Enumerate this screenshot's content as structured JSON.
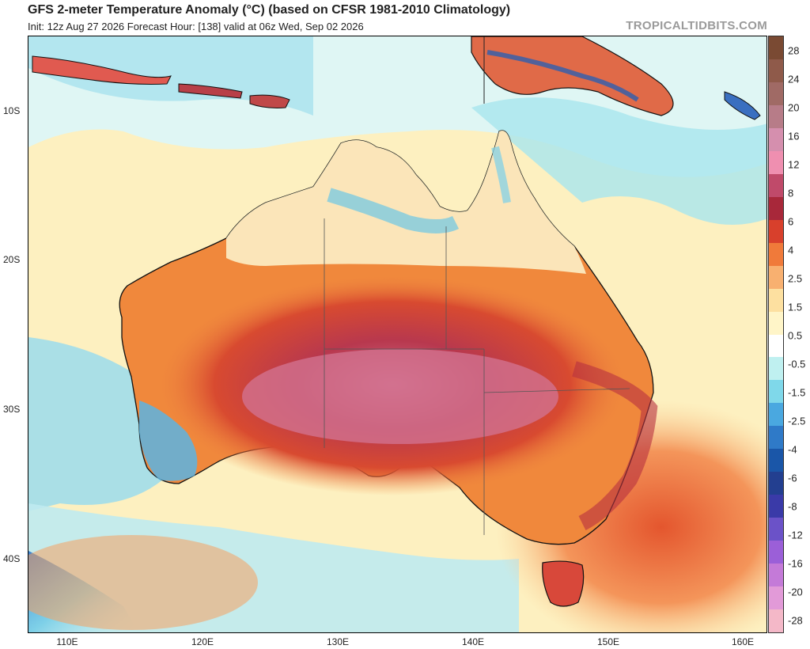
{
  "header": {
    "title": "GFS 2-meter Temperature Anomaly (°C) (based on CFSR 1981-2010 Climatology)",
    "subtitle": "Init: 12z Aug 27 2026   Forecast Hour: [138]   valid at 06z Wed, Sep 02 2026",
    "brand": "TROPICALTIDBITS.COM"
  },
  "axes": {
    "lat_labels": [
      "10S",
      "20S",
      "30S",
      "40S"
    ],
    "lon_labels": [
      "110E",
      "120E",
      "130E",
      "140E",
      "150E",
      "160E"
    ]
  },
  "colorbar": {
    "labels": [
      "28",
      "24",
      "20",
      "16",
      "12",
      "8",
      "6",
      "4",
      "2.5",
      "1.5",
      "0.5",
      "-0.5",
      "-1.5",
      "-2.5",
      "-4",
      "-6",
      "-8",
      "-12",
      "-16",
      "-20",
      "-28"
    ],
    "colors": [
      "#7a4a33",
      "#8f5a4a",
      "#a06a65",
      "#b77c88",
      "#d58fae",
      "#ef8fb0",
      "#c04a6a",
      "#a8283a",
      "#d8402c",
      "#f07a3a",
      "#f8b070",
      "#fde0a0",
      "#fff5c8",
      "#ffffff",
      "#bff0f0",
      "#7fd8ea",
      "#4aa8e0",
      "#2f7ac8",
      "#1a56a8",
      "#233f90",
      "#3a3aa8",
      "#6b52c8",
      "#9b5fd8",
      "#c47ad8",
      "#e29ad8",
      "#f4b8c8"
    ]
  },
  "colors": {
    "ocean_base": "#fdf3c6",
    "land_outline": "#111111",
    "heat_core": "#c9607a"
  }
}
